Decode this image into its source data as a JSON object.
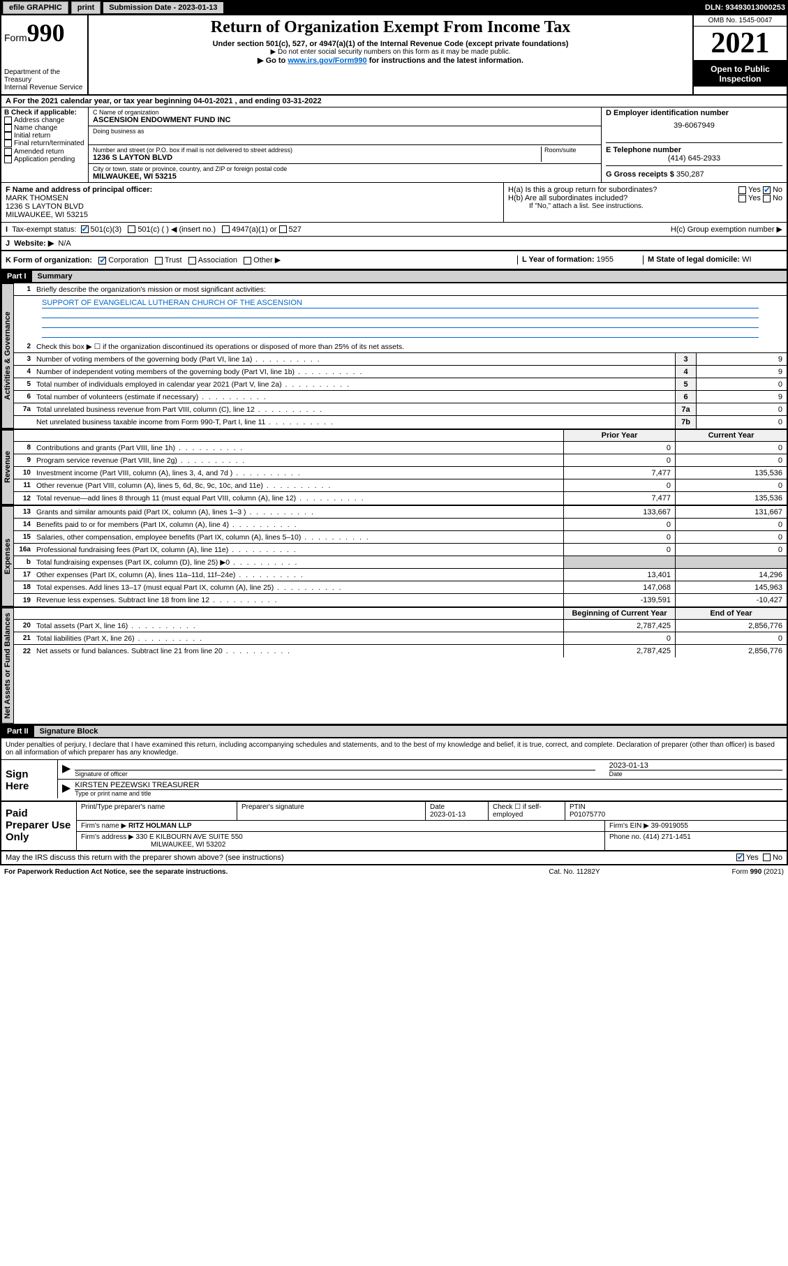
{
  "topbar": {
    "efile": "efile GRAPHIC",
    "print": "print",
    "subdate_label": "Submission Date - 2023-01-13",
    "dln": "DLN: 93493013000253"
  },
  "header": {
    "form_prefix": "Form",
    "form_num": "990",
    "dept": "Department of the Treasury",
    "irs": "Internal Revenue Service",
    "title": "Return of Organization Exempt From Income Tax",
    "sub1": "Under section 501(c), 527, or 4947(a)(1) of the Internal Revenue Code (except private foundations)",
    "sub2": "▶ Do not enter social security numbers on this form as it may be made public.",
    "sub3_pre": "▶ Go to ",
    "sub3_link": "www.irs.gov/Form990",
    "sub3_post": " for instructions and the latest information.",
    "omb": "OMB No. 1545-0047",
    "year": "2021",
    "open1": "Open to Public",
    "open2": "Inspection"
  },
  "period": {
    "a": "A For the 2021 calendar year, or tax year beginning ",
    "begin": "04-01-2021",
    "mid": " , and ending ",
    "end": "03-31-2022"
  },
  "boxB": {
    "label": "B Check if applicable:",
    "opts": [
      "Address change",
      "Name change",
      "Initial return",
      "Final return/terminated",
      "Amended return",
      "Application pending"
    ]
  },
  "boxC": {
    "name_label": "C Name of organization",
    "name": "ASCENSION ENDOWMENT FUND INC",
    "dba_label": "Doing business as",
    "dba": "",
    "addr_label": "Number and street (or P.O. box if mail is not delivered to street address)",
    "room_label": "Room/suite",
    "addr": "1236 S LAYTON BLVD",
    "city_label": "City or town, state or province, country, and ZIP or foreign postal code",
    "city": "MILWAUKEE, WI  53215"
  },
  "boxD": {
    "label": "D Employer identification number",
    "val": "39-6067949"
  },
  "boxE": {
    "label": "E Telephone number",
    "val": "(414) 645-2933"
  },
  "boxG": {
    "label": "G Gross receipts $",
    "val": "350,287"
  },
  "boxF": {
    "label": "F Name and address of principal officer:",
    "name": "MARK THOMSEN",
    "addr1": "1236 S LAYTON BLVD",
    "addr2": "MILWAUKEE, WI  53215"
  },
  "boxH": {
    "a": "H(a)  Is this a group return for subordinates?",
    "b": "H(b)  Are all subordinates included?",
    "b_note": "If \"No,\" attach a list. See instructions.",
    "c": "H(c)  Group exemption number ▶",
    "yes": "Yes",
    "no": "No"
  },
  "boxI": {
    "label": "Tax-exempt status:",
    "o1": "501(c)(3)",
    "o2": "501(c) (   ) ◀ (insert no.)",
    "o3": "4947(a)(1) or",
    "o4": "527"
  },
  "boxJ": {
    "label": "Website: ▶",
    "val": "N/A"
  },
  "boxK": {
    "label": "K Form of organization:",
    "opts": [
      "Corporation",
      "Trust",
      "Association",
      "Other ▶"
    ]
  },
  "boxL": {
    "label": "L Year of formation:",
    "val": "1955"
  },
  "boxM": {
    "label": "M State of legal domicile:",
    "val": "WI"
  },
  "partI": {
    "hdr": "Part I",
    "title": "Summary",
    "tab_ag": "Activities & Governance",
    "tab_rev": "Revenue",
    "tab_exp": "Expenses",
    "tab_net": "Net Assets or Fund Balances",
    "l1": "Briefly describe the organization's mission or most significant activities:",
    "mission": "SUPPORT OF EVANGELICAL LUTHERAN CHURCH OF THE ASCENSION",
    "l2": "Check this box ▶ ☐ if the organization discontinued its operations or disposed of more than 25% of its net assets.",
    "rows_ag": [
      {
        "n": "3",
        "d": "Number of voting members of the governing body (Part VI, line 1a)",
        "c": "3",
        "v": "9"
      },
      {
        "n": "4",
        "d": "Number of independent voting members of the governing body (Part VI, line 1b)",
        "c": "4",
        "v": "9"
      },
      {
        "n": "5",
        "d": "Total number of individuals employed in calendar year 2021 (Part V, line 2a)",
        "c": "5",
        "v": "0"
      },
      {
        "n": "6",
        "d": "Total number of volunteers (estimate if necessary)",
        "c": "6",
        "v": "9"
      },
      {
        "n": "7a",
        "d": "Total unrelated business revenue from Part VIII, column (C), line 12",
        "c": "7a",
        "v": "0"
      },
      {
        "n": "",
        "d": "Net unrelated business taxable income from Form 990-T, Part I, line 11",
        "c": "7b",
        "v": "0"
      }
    ],
    "col_prior": "Prior Year",
    "col_curr": "Current Year",
    "rows_rev": [
      {
        "n": "8",
        "d": "Contributions and grants (Part VIII, line 1h)",
        "p": "0",
        "c": "0"
      },
      {
        "n": "9",
        "d": "Program service revenue (Part VIII, line 2g)",
        "p": "0",
        "c": "0"
      },
      {
        "n": "10",
        "d": "Investment income (Part VIII, column (A), lines 3, 4, and 7d )",
        "p": "7,477",
        "c": "135,536"
      },
      {
        "n": "11",
        "d": "Other revenue (Part VIII, column (A), lines 5, 6d, 8c, 9c, 10c, and 11e)",
        "p": "0",
        "c": "0"
      },
      {
        "n": "12",
        "d": "Total revenue—add lines 8 through 11 (must equal Part VIII, column (A), line 12)",
        "p": "7,477",
        "c": "135,536"
      }
    ],
    "rows_exp": [
      {
        "n": "13",
        "d": "Grants and similar amounts paid (Part IX, column (A), lines 1–3 )",
        "p": "133,667",
        "c": "131,667"
      },
      {
        "n": "14",
        "d": "Benefits paid to or for members (Part IX, column (A), line 4)",
        "p": "0",
        "c": "0"
      },
      {
        "n": "15",
        "d": "Salaries, other compensation, employee benefits (Part IX, column (A), lines 5–10)",
        "p": "0",
        "c": "0"
      },
      {
        "n": "16a",
        "d": "Professional fundraising fees (Part IX, column (A), line 11e)",
        "p": "0",
        "c": "0"
      },
      {
        "n": "b",
        "d": "Total fundraising expenses (Part IX, column (D), line 25) ▶0",
        "p": "",
        "c": "",
        "shade": true
      },
      {
        "n": "17",
        "d": "Other expenses (Part IX, column (A), lines 11a–11d, 11f–24e)",
        "p": "13,401",
        "c": "14,296"
      },
      {
        "n": "18",
        "d": "Total expenses. Add lines 13–17 (must equal Part IX, column (A), line 25)",
        "p": "147,068",
        "c": "145,963"
      },
      {
        "n": "19",
        "d": "Revenue less expenses. Subtract line 18 from line 12",
        "p": "-139,591",
        "c": "-10,427"
      }
    ],
    "col_begin": "Beginning of Current Year",
    "col_end": "End of Year",
    "rows_net": [
      {
        "n": "20",
        "d": "Total assets (Part X, line 16)",
        "p": "2,787,425",
        "c": "2,856,776"
      },
      {
        "n": "21",
        "d": "Total liabilities (Part X, line 26)",
        "p": "0",
        "c": "0"
      },
      {
        "n": "22",
        "d": "Net assets or fund balances. Subtract line 21 from line 20",
        "p": "2,787,425",
        "c": "2,856,776"
      }
    ]
  },
  "partII": {
    "hdr": "Part II",
    "title": "Signature Block",
    "declare": "Under penalties of perjury, I declare that I have examined this return, including accompanying schedules and statements, and to the best of my knowledge and belief, it is true, correct, and complete. Declaration of preparer (other than officer) is based on all information of which preparer has any knowledge."
  },
  "sign": {
    "label": "Sign Here",
    "sig_label": "Signature of officer",
    "date_label": "Date",
    "date": "2023-01-13",
    "name": "KIRSTEN PEZEWSKI TREASURER",
    "name_label": "Type or print name and title"
  },
  "preparer": {
    "label": "Paid Preparer Use Only",
    "h1": "Print/Type preparer's name",
    "h2": "Preparer's signature",
    "h3": "Date",
    "h3v": "2023-01-13",
    "h4": "Check ☐ if self-employed",
    "h5": "PTIN",
    "h5v": "P01075770",
    "firm_label": "Firm's name    ▶",
    "firm": "RITZ HOLMAN LLP",
    "ein_label": "Firm's EIN ▶",
    "ein": "39-0919055",
    "addr_label": "Firm's address ▶",
    "addr1": "330 E KILBOURN AVE SUITE 550",
    "addr2": "MILWAUKEE, WI  53202",
    "phone_label": "Phone no.",
    "phone": "(414) 271-1451"
  },
  "discuss": {
    "q": "May the IRS discuss this return with the preparer shown above? (see instructions)",
    "yes": "Yes",
    "no": "No"
  },
  "footer": {
    "left": "For Paperwork Reduction Act Notice, see the separate instructions.",
    "mid": "Cat. No. 11282Y",
    "right": "Form 990 (2021)"
  }
}
